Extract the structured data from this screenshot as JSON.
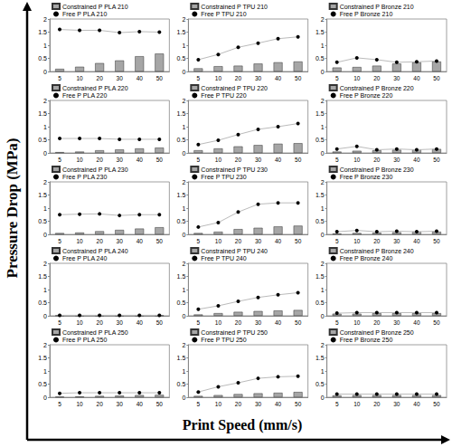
{
  "figure": {
    "ylabel": "Pressure Drop (MPa)",
    "xlabel": "Print Speed (mm/s)"
  },
  "chart_data": [
    {
      "type": "bar",
      "categories": [
        "5",
        "10",
        "20",
        "30",
        "40",
        "50"
      ],
      "ylim": [
        0,
        2
      ],
      "yticks": [
        0,
        0.5,
        1,
        1.5,
        2
      ],
      "grid": false,
      "legend": "top-left",
      "series": [
        {
          "name": "Constrained P PLA 210",
          "type": "bar",
          "color": "#a6a6a6",
          "values": [
            0.1,
            0.18,
            0.32,
            0.42,
            0.58,
            0.68
          ]
        },
        {
          "name": "Free P PLA 210",
          "type": "line",
          "color": "#000000",
          "marker": "circle",
          "values": [
            1.6,
            1.57,
            1.57,
            1.48,
            1.52,
            1.5
          ]
        }
      ]
    },
    {
      "type": "bar",
      "categories": [
        "5",
        "10",
        "20",
        "30",
        "40",
        "50"
      ],
      "ylim": [
        0,
        2
      ],
      "yticks": [
        0,
        0.5,
        1,
        1.5,
        2
      ],
      "grid": false,
      "legend": "top-left",
      "series": [
        {
          "name": "Constrained P TPU 210",
          "type": "bar",
          "color": "#a6a6a6",
          "values": [
            0.12,
            0.2,
            0.22,
            0.3,
            0.35,
            0.38
          ]
        },
        {
          "name": "Free P TPU 210",
          "type": "line",
          "color": "#000000",
          "marker": "circle",
          "values": [
            0.45,
            0.65,
            0.92,
            1.08,
            1.25,
            1.32
          ]
        }
      ]
    },
    {
      "type": "bar",
      "categories": [
        "5",
        "10",
        "20",
        "30",
        "40",
        "50"
      ],
      "ylim": [
        0,
        2
      ],
      "yticks": [
        0,
        0.5,
        1,
        1.5,
        2
      ],
      "grid": false,
      "legend": "top-left",
      "series": [
        {
          "name": "Constrained P Bronze 210",
          "type": "bar",
          "color": "#a6a6a6",
          "values": [
            0.15,
            0.17,
            0.22,
            0.3,
            0.35,
            0.38
          ]
        },
        {
          "name": "Free P Bronze 210",
          "type": "line",
          "color": "#000000",
          "marker": "circle",
          "values": [
            0.35,
            0.52,
            0.45,
            0.35,
            0.37,
            0.4
          ]
        }
      ]
    },
    {
      "type": "bar",
      "categories": [
        "5",
        "10",
        "20",
        "30",
        "40",
        "50"
      ],
      "ylim": [
        0,
        2
      ],
      "yticks": [
        0,
        0.5,
        1,
        1.5,
        2
      ],
      "grid": false,
      "legend": "top-left",
      "series": [
        {
          "name": "Constrained P PLA 220",
          "type": "bar",
          "color": "#a6a6a6",
          "values": [
            0.03,
            0.05,
            0.1,
            0.13,
            0.17,
            0.2
          ]
        },
        {
          "name": "Free P PLA 220",
          "type": "line",
          "color": "#000000",
          "marker": "circle",
          "values": [
            0.55,
            0.55,
            0.55,
            0.52,
            0.52,
            0.52
          ]
        }
      ]
    },
    {
      "type": "bar",
      "categories": [
        "5",
        "10",
        "20",
        "30",
        "40",
        "50"
      ],
      "ylim": [
        0,
        2
      ],
      "yticks": [
        0,
        0.5,
        1,
        1.5,
        2
      ],
      "grid": false,
      "legend": "top-left",
      "series": [
        {
          "name": "Constrained P TPU 220",
          "type": "bar",
          "color": "#a6a6a6",
          "values": [
            0.1,
            0.17,
            0.25,
            0.3,
            0.35,
            0.37
          ]
        },
        {
          "name": "Free P TPU 220",
          "type": "line",
          "color": "#000000",
          "marker": "circle",
          "values": [
            0.32,
            0.48,
            0.7,
            0.9,
            1.0,
            1.12
          ]
        }
      ]
    },
    {
      "type": "bar",
      "categories": [
        "5",
        "10",
        "20",
        "30",
        "40",
        "50"
      ],
      "ylim": [
        0,
        2
      ],
      "yticks": [
        0,
        0.5,
        1,
        1.5,
        2
      ],
      "grid": false,
      "legend": "top-left",
      "series": [
        {
          "name": "Constrained P Bronze 220",
          "type": "bar",
          "color": "#a6a6a6",
          "values": [
            0.05,
            0.08,
            0.1,
            0.12,
            0.13,
            0.15
          ]
        },
        {
          "name": "Free P Bronze 220",
          "type": "line",
          "color": "#000000",
          "marker": "circle",
          "values": [
            0.15,
            0.25,
            0.12,
            0.15,
            0.12,
            0.15
          ]
        }
      ]
    },
    {
      "type": "bar",
      "categories": [
        "5",
        "10",
        "20",
        "30",
        "40",
        "50"
      ],
      "ylim": [
        0,
        2
      ],
      "yticks": [
        0,
        0.5,
        1,
        1.5,
        2
      ],
      "grid": false,
      "legend": "top-left",
      "series": [
        {
          "name": "Constrained P PLA 230",
          "type": "bar",
          "color": "#a6a6a6",
          "values": [
            0.05,
            0.07,
            0.12,
            0.17,
            0.22,
            0.27
          ]
        },
        {
          "name": "Free P PLA 230",
          "type": "line",
          "color": "#000000",
          "marker": "circle",
          "values": [
            0.75,
            0.77,
            0.78,
            0.72,
            0.75,
            0.75
          ]
        }
      ]
    },
    {
      "type": "bar",
      "categories": [
        "5",
        "10",
        "20",
        "30",
        "40",
        "50"
      ],
      "ylim": [
        0,
        2
      ],
      "yticks": [
        0,
        0.5,
        1,
        1.5,
        2
      ],
      "grid": false,
      "legend": "top-left",
      "series": [
        {
          "name": "Constrained P TPU 230",
          "type": "bar",
          "color": "#a6a6a6",
          "values": [
            0.05,
            0.1,
            0.2,
            0.25,
            0.3,
            0.33
          ]
        },
        {
          "name": "Free P TPU 230",
          "type": "line",
          "color": "#000000",
          "marker": "circle",
          "values": [
            0.28,
            0.45,
            0.85,
            1.15,
            1.2,
            1.2
          ]
        }
      ]
    },
    {
      "type": "bar",
      "categories": [
        "5",
        "10",
        "20",
        "30",
        "40",
        "50"
      ],
      "ylim": [
        0,
        2
      ],
      "yticks": [
        0,
        0.5,
        1,
        1.5,
        2
      ],
      "grid": false,
      "legend": "top-left",
      "series": [
        {
          "name": "Constrained P Bronze 230",
          "type": "bar",
          "color": "#a6a6a6",
          "values": [
            0.03,
            0.05,
            0.06,
            0.08,
            0.1,
            0.1
          ]
        },
        {
          "name": "Free P Bronze 230",
          "type": "line",
          "color": "#000000",
          "marker": "circle",
          "values": [
            0.1,
            0.15,
            0.1,
            0.12,
            0.1,
            0.12
          ]
        }
      ]
    },
    {
      "type": "bar",
      "categories": [
        "5",
        "10",
        "20",
        "30",
        "40",
        "50"
      ],
      "ylim": [
        0,
        2
      ],
      "yticks": [
        0,
        0.5,
        1,
        1.5,
        2
      ],
      "grid": false,
      "legend": "top-left",
      "series": [
        {
          "name": "Constrained P PLA 240",
          "type": "bar",
          "color": "#a6a6a6",
          "values": [
            0.01,
            0.01,
            0.01,
            0.01,
            0.01,
            0.01
          ]
        },
        {
          "name": "Free P PLA 240",
          "type": "line",
          "color": "#000000",
          "marker": "circle",
          "values": [
            0.02,
            0.02,
            0.02,
            0.02,
            0.02,
            0.02
          ]
        }
      ]
    },
    {
      "type": "bar",
      "categories": [
        "5",
        "10",
        "20",
        "30",
        "40",
        "50"
      ],
      "ylim": [
        0,
        2
      ],
      "yticks": [
        0,
        0.5,
        1,
        1.5,
        2
      ],
      "grid": false,
      "legend": "top-left",
      "series": [
        {
          "name": "Constrained P TPU 240",
          "type": "bar",
          "color": "#a6a6a6",
          "values": [
            0.05,
            0.1,
            0.15,
            0.18,
            0.2,
            0.22
          ]
        },
        {
          "name": "Free P TPU 240",
          "type": "line",
          "color": "#000000",
          "marker": "circle",
          "values": [
            0.25,
            0.38,
            0.55,
            0.7,
            0.8,
            0.88
          ]
        }
      ]
    },
    {
      "type": "bar",
      "categories": [
        "5",
        "10",
        "20",
        "30",
        "40",
        "50"
      ],
      "ylim": [
        0,
        2
      ],
      "yticks": [
        0,
        0.5,
        1,
        1.5,
        2
      ],
      "grid": false,
      "legend": "top-left",
      "series": [
        {
          "name": "Constrained P Bronze 240",
          "type": "bar",
          "color": "#a6a6a6",
          "values": [
            0.08,
            0.08,
            0.1,
            0.1,
            0.1,
            0.1
          ]
        },
        {
          "name": "Free P Bronze 240",
          "type": "line",
          "color": "#000000",
          "marker": "circle",
          "values": [
            0.1,
            0.12,
            0.12,
            0.12,
            0.12,
            0.12
          ]
        }
      ]
    },
    {
      "type": "bar",
      "categories": [
        "5",
        "10",
        "20",
        "30",
        "40",
        "50"
      ],
      "ylim": [
        0,
        2
      ],
      "yticks": [
        0,
        0.5,
        1,
        1.5,
        2
      ],
      "grid": false,
      "legend": "top-left",
      "series": [
        {
          "name": "Constrained P PLA 250",
          "type": "bar",
          "color": "#a6a6a6",
          "values": [
            0.02,
            0.03,
            0.05,
            0.06,
            0.08,
            0.09
          ]
        },
        {
          "name": "Free P PLA 250",
          "type": "line",
          "color": "#000000",
          "marker": "circle",
          "values": [
            0.15,
            0.17,
            0.17,
            0.17,
            0.17,
            0.17
          ]
        }
      ]
    },
    {
      "type": "bar",
      "categories": [
        "5",
        "10",
        "20",
        "30",
        "40",
        "50"
      ],
      "ylim": [
        0,
        2
      ],
      "yticks": [
        0,
        0.5,
        1,
        1.5,
        2
      ],
      "grid": false,
      "legend": "top-left",
      "series": [
        {
          "name": "Constrained P TPU 250",
          "type": "bar",
          "color": "#a6a6a6",
          "values": [
            0.05,
            0.08,
            0.12,
            0.15,
            0.17,
            0.2
          ]
        },
        {
          "name": "Free P TPU 250",
          "type": "line",
          "color": "#000000",
          "marker": "circle",
          "values": [
            0.2,
            0.4,
            0.55,
            0.72,
            0.78,
            0.8
          ]
        }
      ]
    },
    {
      "type": "bar",
      "categories": [
        "5",
        "10",
        "20",
        "30",
        "40",
        "50"
      ],
      "ylim": [
        0,
        2
      ],
      "yticks": [
        0,
        0.5,
        1,
        1.5,
        2
      ],
      "grid": false,
      "legend": "top-left",
      "series": [
        {
          "name": "Constrained P Bronze 250",
          "type": "bar",
          "color": "#a6a6a6",
          "values": [
            0.07,
            0.08,
            0.08,
            0.08,
            0.08,
            0.08
          ]
        },
        {
          "name": "Free P Bronze 250",
          "type": "line",
          "color": "#000000",
          "marker": "circle",
          "values": [
            0.12,
            0.12,
            0.12,
            0.12,
            0.12,
            0.12
          ]
        }
      ]
    }
  ]
}
